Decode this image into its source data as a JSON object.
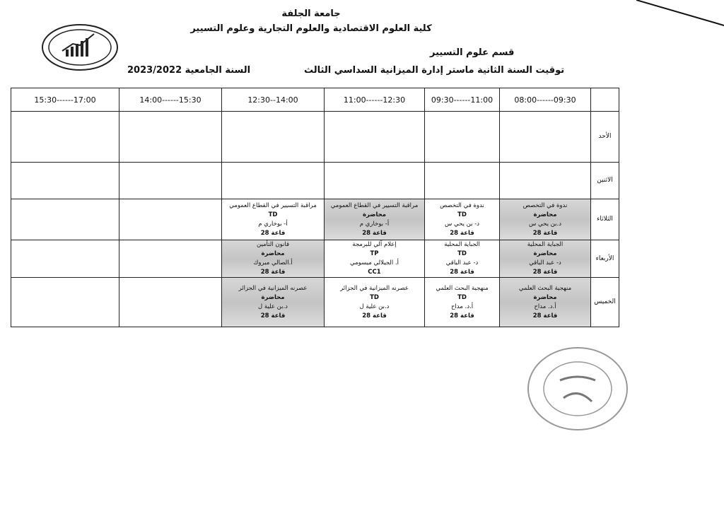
{
  "header": {
    "university": "جامعة الجلفة",
    "faculty": "كلية العلوم الاقتصادية والعلوم التجارية وعلوم التسيير",
    "department": "قسم علوم التسيير",
    "title": "توقيت السنة الثانية ماستر إدارة الميزانية السداسي الثالث",
    "year": "السنة الجامعية 2023/2022"
  },
  "columns": [
    "",
    "09:30------08:00",
    "11:00------09:30",
    "12:30------11:00",
    "14:00--12:30",
    "15:30------14:00",
    "17:00------15:30"
  ],
  "rows": [
    {
      "day": "الأحد",
      "cells": [
        null,
        null,
        null,
        null,
        null,
        null
      ]
    },
    {
      "day": "الاثنين",
      "cells": [
        null,
        null,
        null,
        null,
        null,
        null
      ]
    },
    {
      "day": "الثلاثاء",
      "cells": [
        {
          "subject": "ندوة في التخصص",
          "type": "محاضرة",
          "teacher": "د.بن يحي س",
          "room": "قاعة 28",
          "shaded": true
        },
        {
          "subject": "ندوة في التخصص",
          "type": "TD",
          "teacher": "د- بن يحي س",
          "room": "قاعة 28"
        },
        {
          "subject": "مراقبة التسيير في القطاع العمومي",
          "type": "محاضرة",
          "teacher": "أ- بوخاري م",
          "room": "قاعة 28",
          "shaded": true
        },
        {
          "subject": "مراقبة التسيير في القطاع العمومي",
          "type": "TD",
          "teacher": "أ- بوخاري م",
          "room": "قاعة 28"
        },
        null,
        null
      ]
    },
    {
      "day": "الأربعاء",
      "cells": [
        {
          "subject": "الجباية المحلية",
          "type": "محاضرة",
          "teacher": "د- عبد الباقي",
          "room": "قاعة 28",
          "shaded": true
        },
        {
          "subject": "الجباية المحلية",
          "type": "TD",
          "teacher": "د- عبد الباقي",
          "room": "قاعة 28"
        },
        {
          "subject": "إعلام آلي للبرمجة",
          "type": "TP",
          "teacher": "أ. الجيلالي ميسومي",
          "room": "CC1"
        },
        {
          "subject": "قانون التأمين",
          "type": "محاضرة",
          "teacher": "أ.الصالي مبروك",
          "room": "قاعة 28",
          "shaded": true
        },
        null,
        null
      ]
    },
    {
      "day": "الخميس",
      "cells": [
        {
          "subject": "منهجية البحث العلمي",
          "type": "محاضرة",
          "teacher": "أ.د. مداح",
          "room": "قاعة 28",
          "shaded": true
        },
        {
          "subject": "منهجية البحث العلمي",
          "type": "TD",
          "teacher": "أ.د. مداح",
          "room": "قاعة 28"
        },
        {
          "subject": "عصرنه الميزانية في الجزائر",
          "type": "TD",
          "teacher": "د.بن علية ل",
          "room": "قاعة 28"
        },
        {
          "subject": "عصرنه الميزانية في الجزائر",
          "type": "محاضرة",
          "teacher": "د.بن علية ل",
          "room": "قاعة 28",
          "shaded": true
        },
        null,
        null
      ]
    }
  ]
}
